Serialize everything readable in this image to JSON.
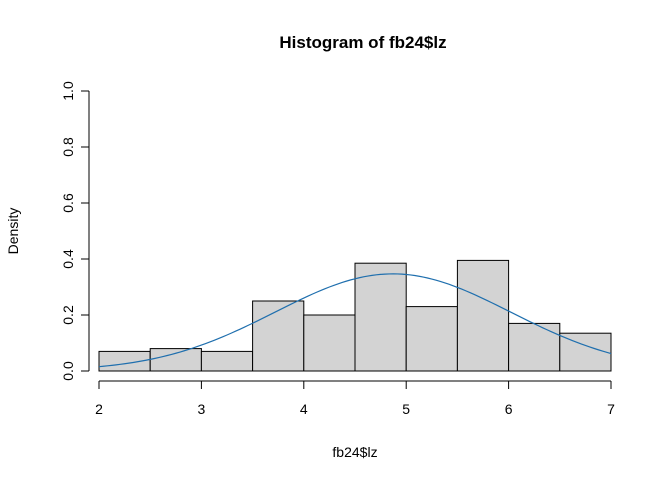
{
  "chart_data": {
    "type": "bar",
    "title": "Histogram of fb24$lz",
    "xlabel": "fb24$lz",
    "ylabel": "Density",
    "bins": [
      {
        "x0": 2.0,
        "x1": 2.5,
        "density": 0.07
      },
      {
        "x0": 2.5,
        "x1": 3.0,
        "density": 0.08
      },
      {
        "x0": 3.0,
        "x1": 3.5,
        "density": 0.07
      },
      {
        "x0": 3.5,
        "x1": 4.0,
        "density": 0.25
      },
      {
        "x0": 4.0,
        "x1": 4.5,
        "density": 0.2
      },
      {
        "x0": 4.5,
        "x1": 5.0,
        "density": 0.385
      },
      {
        "x0": 5.0,
        "x1": 5.5,
        "density": 0.23
      },
      {
        "x0": 5.5,
        "x1": 6.0,
        "density": 0.395
      },
      {
        "x0": 6.0,
        "x1": 6.5,
        "density": 0.17
      },
      {
        "x0": 6.5,
        "x1": 7.0,
        "density": 0.135
      }
    ],
    "density_curve": {
      "mean": 4.87,
      "sd": 1.15,
      "x_range": [
        2,
        7
      ],
      "color": "#1f6fae"
    },
    "xlim": [
      2,
      7
    ],
    "ylim": [
      0,
      1
    ],
    "x_ticks": [
      "2",
      "3",
      "4",
      "5",
      "6",
      "7"
    ],
    "y_ticks": [
      "0.0",
      "0.2",
      "0.4",
      "0.6",
      "0.8",
      "1.0"
    ],
    "bar_fill": "#d3d3d3",
    "bar_stroke": "#000000",
    "grid": false
  }
}
